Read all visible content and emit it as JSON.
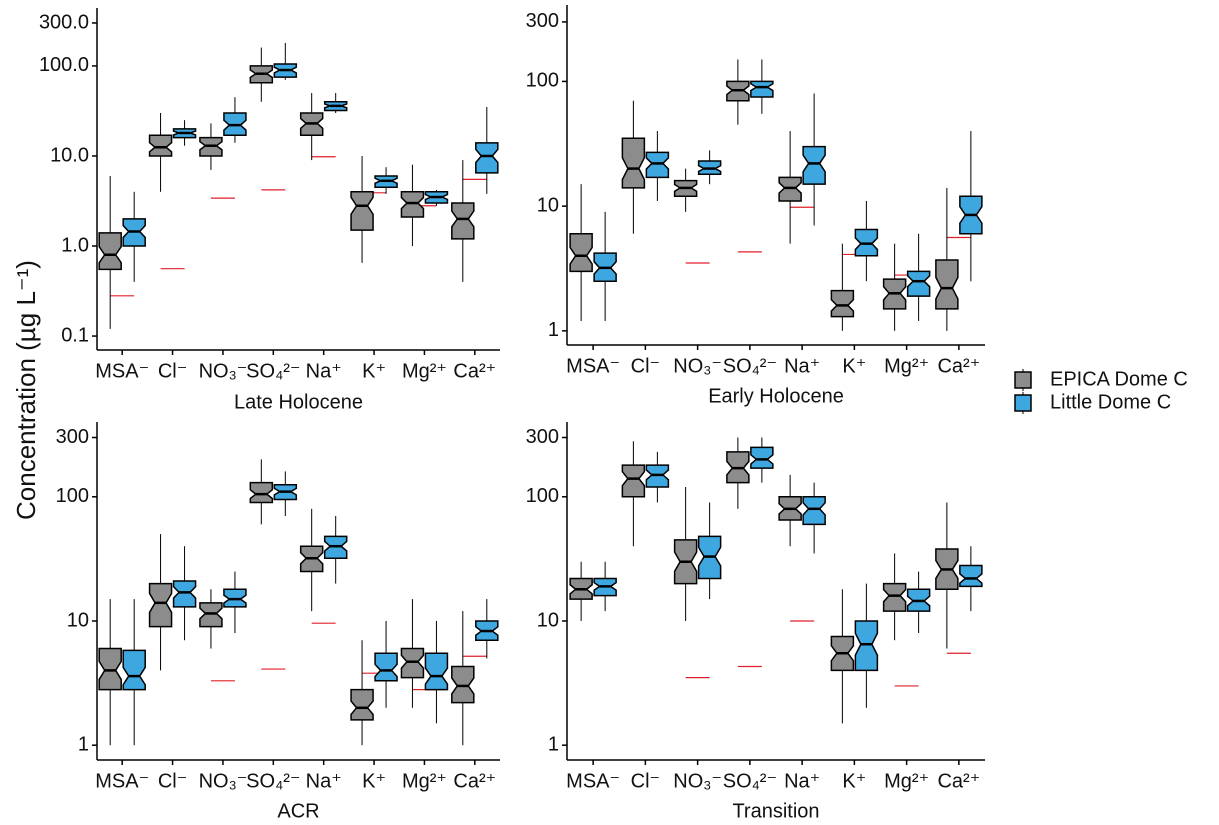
{
  "ylabel": "Concentration (µg L⁻¹)",
  "legend_position": "right",
  "chart_data": [
    {
      "type": "box",
      "xlabel": "Late Holocene",
      "log_scale": true,
      "categories": [
        "MSA⁻",
        "Cl⁻",
        "NO₃⁻",
        "SO₄²⁻",
        "Na⁺",
        "K⁺",
        "Mg²⁺",
        "Ca²⁺"
      ],
      "ylim": [
        0.07,
        440
      ],
      "yticks": [
        0.1,
        {
          "value": 1,
          "label": "1.0"
        },
        {
          "value": 10,
          "label": "10.0"
        },
        {
          "value": 100,
          "label": "100.0"
        },
        {
          "value": 300,
          "label": "300.0"
        }
      ],
      "series": [
        {
          "name": "EPICA Dome C",
          "color": "#8c8c8c",
          "whisker_low": [
            0.12,
            4,
            7,
            40,
            9,
            0.65,
            1,
            0.4
          ],
          "q1": [
            0.55,
            10,
            10,
            65,
            17,
            1.5,
            2.1,
            1.2
          ],
          "median": [
            0.8,
            12.5,
            13,
            82,
            23,
            2.8,
            3,
            2
          ],
          "q3": [
            1.4,
            17,
            16,
            100,
            30,
            4,
            4,
            3
          ],
          "whisker_high": [
            6,
            30,
            23,
            160,
            50,
            10,
            8,
            9
          ]
        },
        {
          "name": "Little Dome C",
          "color": "#3fa7e0",
          "whisker_low": [
            0.4,
            13,
            14,
            70,
            30,
            3.8,
            2.8,
            3.8
          ],
          "q1": [
            1,
            16,
            17,
            75,
            32,
            4.5,
            3,
            6.5
          ],
          "median": [
            1.45,
            18,
            22,
            90,
            36,
            5.3,
            3.5,
            10
          ],
          "q3": [
            2,
            20,
            30,
            105,
            40,
            6,
            4,
            14
          ],
          "whisker_high": [
            4,
            25,
            45,
            180,
            50,
            7.5,
            4.2,
            35
          ]
        }
      ],
      "reference": [
        0.28,
        0.56,
        3.4,
        4.2,
        9.8,
        3.9,
        2.8,
        5.5
      ],
      "reference_color": "#e0202a"
    },
    {
      "type": "box",
      "xlabel": "Early Holocene",
      "log_scale": true,
      "categories": [
        "MSA⁻",
        "Cl⁻",
        "NO₃⁻",
        "SO₄²⁻",
        "Na⁺",
        "K⁺",
        "Mg²⁺",
        "Ca²⁺"
      ],
      "ylim": [
        0.77,
        410
      ],
      "yticks": [
        1,
        10,
        100,
        300
      ],
      "series": [
        {
          "color": "#8c8c8c",
          "whisker_low": [
            1.2,
            6,
            9,
            45,
            5,
            1,
            1,
            1
          ],
          "q1": [
            3,
            14,
            12,
            70,
            11,
            1.3,
            1.5,
            1.5
          ],
          "median": [
            4,
            20,
            14,
            85,
            14,
            1.6,
            2,
            2.2
          ],
          "q3": [
            6,
            35,
            16,
            100,
            17,
            2.1,
            2.6,
            3.7
          ],
          "whisker_high": [
            15,
            70,
            20,
            150,
            40,
            5,
            5,
            14
          ]
        },
        {
          "color": "#3fa7e0",
          "whisker_low": [
            1.2,
            11,
            15,
            55,
            7,
            2.5,
            1.2,
            2.5
          ],
          "q1": [
            2.5,
            17,
            18,
            75,
            15,
            4,
            1.9,
            6
          ],
          "median": [
            3.2,
            22,
            20,
            90,
            22,
            5,
            2.5,
            8.5
          ],
          "q3": [
            4.2,
            27,
            23,
            100,
            30,
            6.5,
            3,
            12
          ],
          "whisker_high": [
            9,
            40,
            28,
            150,
            80,
            11,
            6,
            40
          ]
        }
      ],
      "reference": [
        null,
        null,
        3.5,
        4.3,
        9.8,
        4.1,
        2.8,
        5.6
      ],
      "reference_color": "#e0202a"
    },
    {
      "type": "box",
      "xlabel": "ACR",
      "log_scale": true,
      "categories": [
        "MSA⁻",
        "Cl⁻",
        "NO₃⁻",
        "SO₄²⁻",
        "Na⁺",
        "K⁺",
        "Mg²⁺",
        "Ca²⁺"
      ],
      "ylim": [
        0.76,
        400
      ],
      "yticks": [
        1,
        10,
        100,
        300
      ],
      "series": [
        {
          "color": "#8c8c8c",
          "whisker_low": [
            1,
            4,
            6,
            60,
            12,
            1,
            2,
            1
          ],
          "q1": [
            2.8,
            9,
            9,
            90,
            25,
            1.6,
            3.5,
            2.2
          ],
          "median": [
            4,
            14,
            11.5,
            105,
            32,
            2,
            4.7,
            3
          ],
          "q3": [
            6,
            20,
            14,
            130,
            40,
            2.8,
            6,
            4.3
          ],
          "whisker_high": [
            15,
            50,
            18,
            200,
            80,
            7,
            15,
            12
          ]
        },
        {
          "color": "#3fa7e0",
          "whisker_low": [
            1,
            7,
            8,
            70,
            20,
            2,
            1.5,
            5
          ],
          "q1": [
            2.8,
            13,
            13,
            95,
            32,
            3.3,
            2.8,
            7
          ],
          "median": [
            3.6,
            17,
            15,
            110,
            40,
            4,
            3.6,
            8.3
          ],
          "q3": [
            5.8,
            21,
            18,
            125,
            48,
            5.5,
            5.5,
            10
          ],
          "whisker_high": [
            15,
            40,
            25,
            160,
            70,
            10,
            10,
            15
          ]
        }
      ],
      "reference": [
        null,
        null,
        3.3,
        4.1,
        9.6,
        3.8,
        2.8,
        5.2
      ],
      "reference_color": "#e0202a"
    },
    {
      "type": "box",
      "xlabel": "Transition",
      "log_scale": true,
      "categories": [
        "MSA⁻",
        "Cl⁻",
        "NO₃⁻",
        "SO₄²⁻",
        "Na⁺",
        "K⁺",
        "Mg²⁺",
        "Ca²⁺"
      ],
      "ylim": [
        0.76,
        400
      ],
      "yticks": [
        1,
        10,
        100,
        300
      ],
      "series": [
        {
          "color": "#8c8c8c",
          "whisker_low": [
            10,
            40,
            10,
            80,
            40,
            1.5,
            7,
            6
          ],
          "q1": [
            15,
            100,
            20,
            130,
            65,
            4,
            12,
            18
          ],
          "median": [
            18,
            140,
            30,
            170,
            80,
            5.5,
            16,
            26
          ],
          "q3": [
            22,
            180,
            45,
            230,
            100,
            7.5,
            20,
            38
          ],
          "whisker_high": [
            30,
            280,
            120,
            300,
            150,
            18,
            35,
            90
          ]
        },
        {
          "color": "#3fa7e0",
          "whisker_low": [
            12,
            90,
            15,
            130,
            35,
            2,
            8,
            12
          ],
          "q1": [
            16,
            120,
            22,
            170,
            60,
            4,
            12,
            19
          ],
          "median": [
            19,
            150,
            33,
            200,
            80,
            6.5,
            14.5,
            22
          ],
          "q3": [
            22,
            180,
            48,
            250,
            100,
            10,
            18,
            28
          ],
          "whisker_high": [
            30,
            230,
            90,
            300,
            130,
            20,
            25,
            40
          ]
        }
      ],
      "reference": [
        null,
        null,
        3.5,
        4.3,
        10,
        4,
        3,
        5.5
      ],
      "reference_color": "#e0202a"
    }
  ]
}
